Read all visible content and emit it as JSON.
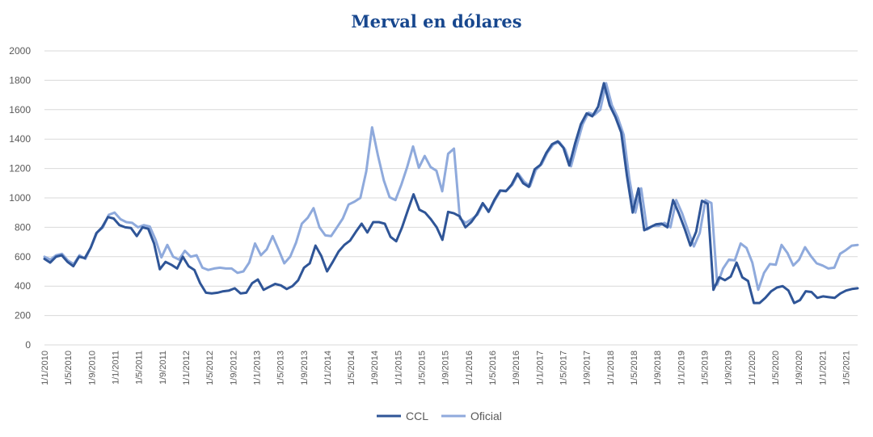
{
  "colors": {
    "ccl": "#2f5597",
    "oficial": "#8faadc",
    "grid": "#d9d9d9",
    "title": "#17478e"
  },
  "chart_data": {
    "type": "line",
    "title": "Merval en dólares",
    "xlabel": "",
    "ylabel": "",
    "ylim": [
      0,
      2000
    ],
    "yticks": [
      "0",
      "200",
      "400",
      "600",
      "800",
      "1000",
      "1200",
      "1400",
      "1600",
      "1800",
      "2000"
    ],
    "grid": true,
    "legend_position": "bottom",
    "x_tick_labels": [
      "1/1/2010",
      "1/5/2010",
      "1/9/2010",
      "1/1/2011",
      "1/5/2011",
      "1/9/2011",
      "1/1/2012",
      "1/5/2012",
      "1/9/2012",
      "1/1/2013",
      "1/5/2013",
      "1/9/2013",
      "1/1/2014",
      "1/5/2014",
      "1/9/2014",
      "1/1/2015",
      "1/5/2015",
      "1/9/2015",
      "1/1/2016",
      "1/5/2016",
      "1/9/2016",
      "1/1/2017",
      "1/5/2017",
      "1/9/2017",
      "1/1/2018",
      "1/5/2018",
      "1/9/2018",
      "1/1/2019",
      "1/5/2019",
      "1/9/2019",
      "1/1/2020",
      "1/5/2020",
      "1/9/2020",
      "1/1/2021",
      "1/5/2021"
    ],
    "x_start": "2010-01",
    "x_end": "2021-07",
    "series": [
      {
        "name": "CCL",
        "values": [
          585,
          560,
          600,
          610,
          565,
          535,
          600,
          590,
          660,
          760,
          800,
          870,
          860,
          815,
          800,
          795,
          740,
          800,
          790,
          690,
          515,
          565,
          545,
          520,
          600,
          535,
          510,
          420,
          355,
          350,
          355,
          365,
          370,
          385,
          350,
          355,
          420,
          445,
          375,
          395,
          415,
          405,
          380,
          400,
          440,
          525,
          555,
          675,
          605,
          500,
          565,
          635,
          680,
          710,
          770,
          825,
          765,
          835,
          835,
          825,
          735,
          705,
          800,
          915,
          1025,
          920,
          900,
          855,
          800,
          715,
          905,
          895,
          875,
          800,
          835,
          890,
          965,
          905,
          985,
          1050,
          1045,
          1090,
          1165,
          1100,
          1075,
          1195,
          1225,
          1305,
          1365,
          1385,
          1340,
          1220,
          1370,
          1500,
          1575,
          1555,
          1620,
          1780,
          1630,
          1550,
          1445,
          1150,
          900,
          1065,
          780,
          800,
          820,
          825,
          800,
          985,
          895,
          790,
          675,
          770,
          980,
          960,
          375,
          460,
          440,
          465,
          560,
          460,
          435,
          285,
          285,
          320,
          365,
          390,
          400,
          370,
          285,
          305,
          365,
          360,
          320,
          330,
          325,
          320,
          350,
          370,
          380,
          385
        ]
      },
      {
        "name": "Oficial",
        "values": [
          600,
          580,
          610,
          620,
          575,
          550,
          610,
          585,
          670,
          765,
          800,
          885,
          900,
          855,
          835,
          830,
          800,
          815,
          805,
          715,
          595,
          680,
          600,
          580,
          640,
          600,
          610,
          525,
          510,
          520,
          525,
          520,
          520,
          490,
          500,
          560,
          690,
          610,
          650,
          740,
          650,
          555,
          600,
          695,
          825,
          865,
          930,
          800,
          745,
          740,
          800,
          860,
          955,
          975,
          1000,
          1180,
          1480,
          1290,
          1120,
          1005,
          985,
          1090,
          1210,
          1350,
          1205,
          1285,
          1210,
          1185,
          1045,
          1300,
          1335,
          860,
          830,
          855,
          885,
          960,
          910,
          985,
          1050,
          1050,
          1090,
          1165,
          1110,
          1080,
          1190,
          1230,
          1310,
          1365,
          1380,
          1330,
          1215,
          1360,
          1500,
          1580,
          1565,
          1600,
          1780,
          1630,
          1545,
          1430,
          1125,
          900,
          1065,
          785,
          810,
          810,
          830,
          800,
          985,
          895,
          780,
          670,
          760,
          985,
          965,
          410,
          520,
          580,
          575,
          690,
          660,
          560,
          375,
          490,
          550,
          545,
          680,
          625,
          540,
          580,
          665,
          605,
          555,
          540,
          520,
          525,
          620,
          645,
          675,
          680
        ]
      }
    ]
  }
}
